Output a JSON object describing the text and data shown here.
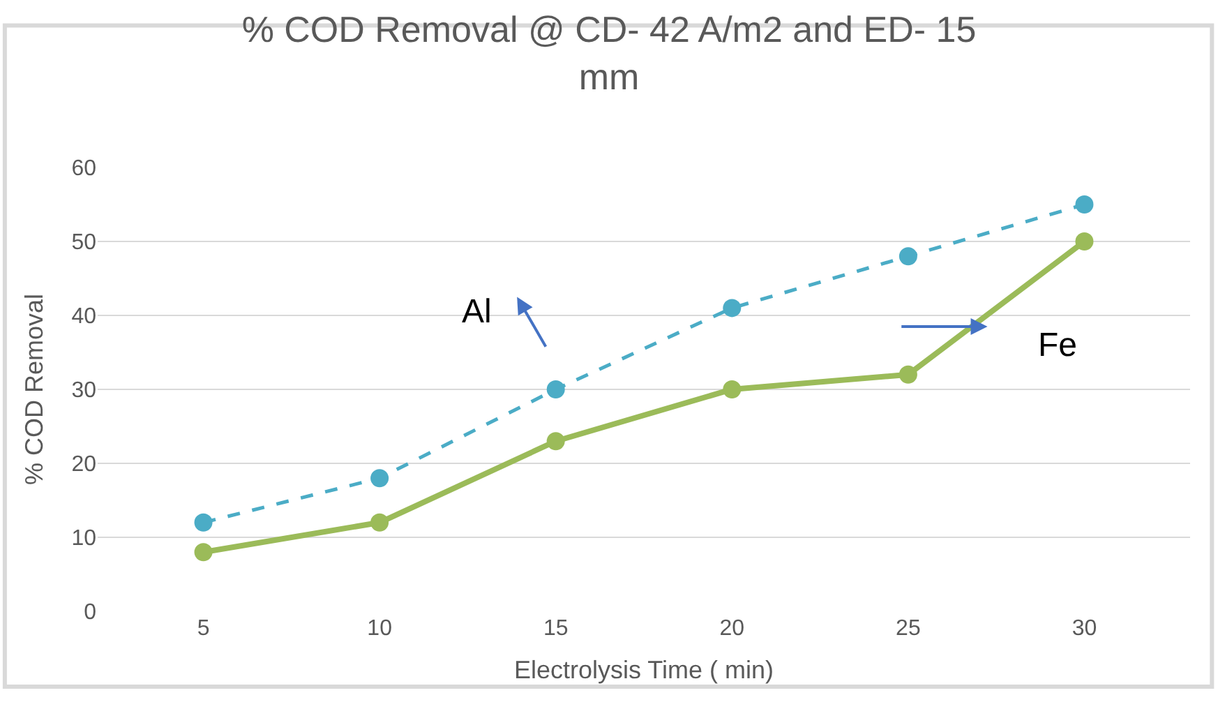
{
  "chart_data": {
    "type": "line",
    "title": "% COD Removal @ CD- 42 A/m2 and ED- 15 mm",
    "xlabel": "Electrolysis Time ( min)",
    "ylabel": "% COD Removal",
    "categories": [
      "5",
      "10",
      "15",
      "20",
      "25",
      "30"
    ],
    "series": [
      {
        "name": "Al",
        "color": "#4bacc6",
        "line_style": "dashed",
        "values": [
          12,
          18,
          30,
          41,
          48,
          55
        ]
      },
      {
        "name": "Fe",
        "color": "#9bbb59",
        "line_style": "solid",
        "values": [
          8,
          12,
          23,
          30,
          32,
          50
        ]
      }
    ],
    "ylim": [
      0,
      60
    ],
    "yticks": [
      0,
      10,
      20,
      30,
      40,
      50,
      60
    ],
    "grid": "y",
    "marker": "circle",
    "legend": false
  }
}
